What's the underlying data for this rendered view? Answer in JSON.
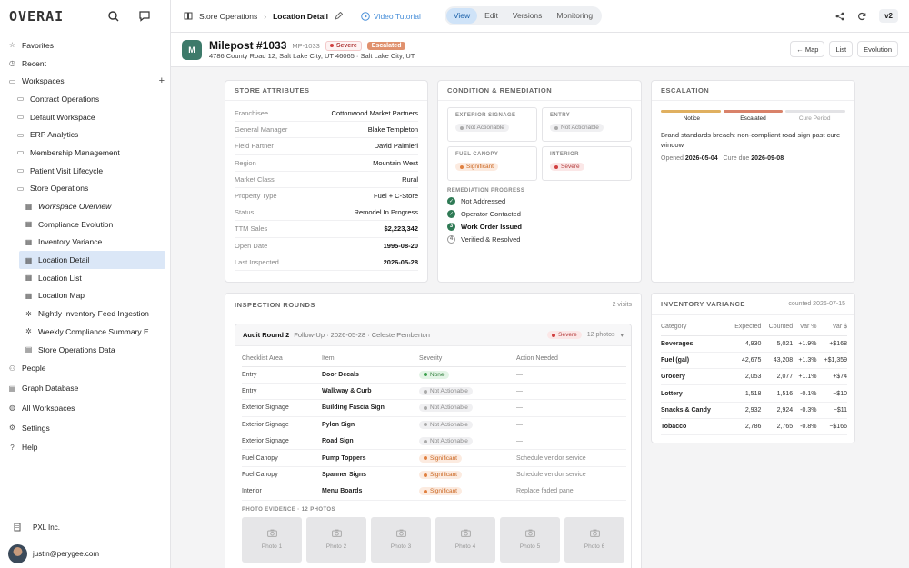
{
  "app": {
    "logo": "OVERAI"
  },
  "sidebar": {
    "top_items": [
      {
        "label": "Favorites",
        "icon": "star-icon"
      },
      {
        "label": "Recent",
        "icon": "clock-icon"
      },
      {
        "label": "Workspaces",
        "icon": "folders-icon",
        "action": "+"
      }
    ],
    "workspaces": [
      "Contract Operations",
      "Default Workspace",
      "ERP Analytics",
      "Membership Management",
      "Patient Visit Lifecycle",
      "Store Operations"
    ],
    "store_ops_children": [
      {
        "label": "Workspace Overview",
        "icon": "table-icon",
        "italic": true
      },
      {
        "label": "Compliance Evolution",
        "icon": "table-icon"
      },
      {
        "label": "Inventory Variance",
        "icon": "table-icon"
      },
      {
        "label": "Location Detail",
        "icon": "table-icon",
        "active": true
      },
      {
        "label": "Location List",
        "icon": "table-icon"
      },
      {
        "label": "Location Map",
        "icon": "table-icon"
      },
      {
        "label": "Nightly Inventory Feed Ingestion",
        "icon": "workflow-icon"
      },
      {
        "label": "Weekly Compliance Summary E...",
        "icon": "workflow-icon"
      },
      {
        "label": "Store Operations Data",
        "icon": "database-icon"
      }
    ],
    "bottom_items": [
      {
        "label": "People",
        "icon": "people-icon"
      },
      {
        "label": "Graph Database",
        "icon": "database-icon"
      },
      {
        "label": "All Workspaces",
        "icon": "globe-icon"
      },
      {
        "label": "Settings",
        "icon": "gear-icon"
      },
      {
        "label": "Help",
        "icon": "help-icon"
      }
    ],
    "org": "PXL Inc.",
    "user": "justin@perygee.com"
  },
  "topbar": {
    "breadcrumb_parent": "Store Operations",
    "breadcrumb_current": "Location Detail",
    "video_tutorial": "Video Tutorial",
    "modes": [
      "View",
      "Edit",
      "Versions",
      "Monitoring"
    ],
    "active_mode": "View",
    "version": "v2"
  },
  "header": {
    "avatar_letter": "M",
    "title": "Milepost #1033",
    "code": "MP-1033",
    "severity": "Severe",
    "status": "Escalated",
    "address": "4786 County Road 12, Salt Lake City, UT 46065 · Salt Lake City, UT",
    "buttons": [
      "← Map",
      "List",
      "Evolution"
    ]
  },
  "store_attributes": {
    "title": "STORE ATTRIBUTES",
    "rows": [
      {
        "k": "Franchisee",
        "v": "Cottonwood Market Partners"
      },
      {
        "k": "General Manager",
        "v": "Blake Templeton"
      },
      {
        "k": "Field Partner",
        "v": "David Palmieri"
      },
      {
        "k": "Region",
        "v": "Mountain West"
      },
      {
        "k": "Market Class",
        "v": "Rural"
      },
      {
        "k": "Property Type",
        "v": "Fuel + C-Store"
      },
      {
        "k": "Status",
        "v": "Remodel In Progress"
      },
      {
        "k": "TTM Sales",
        "v": "$2,223,342",
        "bold": true
      },
      {
        "k": "Open Date",
        "v": "1995-08-20",
        "bold": true
      },
      {
        "k": "Last Inspected",
        "v": "2026-05-28",
        "bold": true
      }
    ]
  },
  "condition": {
    "title": "CONDITION & REMEDIATION",
    "boxes": [
      {
        "label": "EXTERIOR SIGNAGE",
        "value": "Not Actionable",
        "kind": "na"
      },
      {
        "label": "ENTRY",
        "value": "Not Actionable",
        "kind": "na"
      },
      {
        "label": "FUEL CANOPY",
        "value": "Significant",
        "kind": "sig"
      },
      {
        "label": "INTERIOR",
        "value": "Severe",
        "kind": "sev"
      }
    ],
    "progress_label": "REMEDIATION PROGRESS",
    "steps": [
      {
        "label": "Not Addressed",
        "state": "done",
        "mark": "✓"
      },
      {
        "label": "Operator Contacted",
        "state": "done",
        "mark": "✓"
      },
      {
        "label": "Work Order Issued",
        "state": "current",
        "mark": "3"
      },
      {
        "label": "Verified & Resolved",
        "state": "todo",
        "mark": "4"
      }
    ]
  },
  "escalation": {
    "title": "ESCALATION",
    "stages": [
      {
        "label": "Notice",
        "color": "#e0b060"
      },
      {
        "label": "Escalated",
        "color": "#d9826a"
      },
      {
        "label": "Cure Period",
        "color": "#e3e3e6"
      }
    ],
    "description": "Brand standards breach: non-compliant road sign past cure window",
    "opened_label": "Opened",
    "opened": "2026-05-04",
    "cure_label": "Cure due",
    "cure_due": "2026-09-08"
  },
  "inspection": {
    "title": "INSPECTION ROUNDS",
    "visits": "2 visits",
    "round_title": "Audit Round 2",
    "round_sub": "Follow-Up · 2026-05-28 · Celeste Pemberton",
    "round_severity": "Severe",
    "round_photos": "12 photos",
    "columns": [
      "Checklist Area",
      "Item",
      "Severity",
      "Action Needed"
    ],
    "rows": [
      {
        "area": "Entry",
        "item": "Door Decals",
        "sev": "None",
        "kind": "none",
        "action": "—"
      },
      {
        "area": "Entry",
        "item": "Walkway & Curb",
        "sev": "Not Actionable",
        "kind": "na",
        "action": "—"
      },
      {
        "area": "Exterior Signage",
        "item": "Building Fascia Sign",
        "sev": "Not Actionable",
        "kind": "na",
        "action": "—"
      },
      {
        "area": "Exterior Signage",
        "item": "Pylon Sign",
        "sev": "Not Actionable",
        "kind": "na",
        "action": "—"
      },
      {
        "area": "Exterior Signage",
        "item": "Road Sign",
        "sev": "Not Actionable",
        "kind": "na",
        "action": "—"
      },
      {
        "area": "Fuel Canopy",
        "item": "Pump Toppers",
        "sev": "Significant",
        "kind": "sig",
        "action": "Schedule vendor service"
      },
      {
        "area": "Fuel Canopy",
        "item": "Spanner Signs",
        "sev": "Significant",
        "kind": "sig",
        "action": "Schedule vendor service"
      },
      {
        "area": "Interior",
        "item": "Menu Boards",
        "sev": "Significant",
        "kind": "sig",
        "action": "Replace faded panel"
      }
    ],
    "photo_label": "PHOTO EVIDENCE · 12 PHOTOS",
    "photos": [
      "Photo 1",
      "Photo 2",
      "Photo 3",
      "Photo 4",
      "Photo 5",
      "Photo 6"
    ]
  },
  "inventory": {
    "title": "INVENTORY VARIANCE",
    "counted": "counted 2026-07-15",
    "columns": [
      "Category",
      "Expected",
      "Counted",
      "Var %",
      "Var $"
    ],
    "rows": [
      {
        "cat": "Beverages",
        "exp": "4,930",
        "cnt": "5,021",
        "pct": "+1.9%",
        "usd": "+$168",
        "dir": "up"
      },
      {
        "cat": "Fuel (gal)",
        "exp": "42,675",
        "cnt": "43,208",
        "pct": "+1.3%",
        "usd": "+$1,359",
        "dir": "up"
      },
      {
        "cat": "Grocery",
        "exp": "2,053",
        "cnt": "2,077",
        "pct": "+1.1%",
        "usd": "+$74",
        "dir": "up"
      },
      {
        "cat": "Lottery",
        "exp": "1,518",
        "cnt": "1,516",
        "pct": "-0.1%",
        "usd": "−$10",
        "dir": "dn"
      },
      {
        "cat": "Snacks & Candy",
        "exp": "2,932",
        "cnt": "2,924",
        "pct": "-0.3%",
        "usd": "−$11",
        "dir": "dn"
      },
      {
        "cat": "Tobacco",
        "exp": "2,786",
        "cnt": "2,765",
        "pct": "-0.8%",
        "usd": "−$166",
        "dir": "dn"
      }
    ]
  }
}
